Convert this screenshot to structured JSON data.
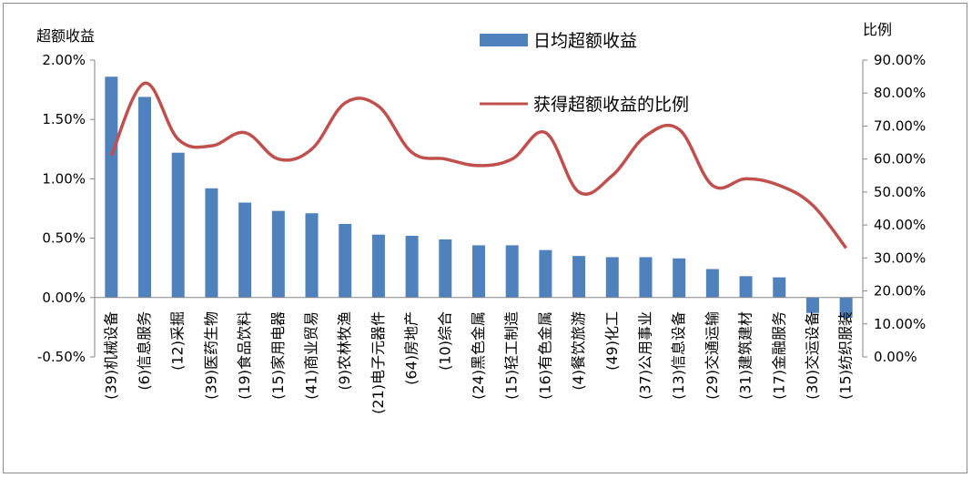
{
  "chart_data": {
    "type": "bar+line",
    "left_axis_title": "超额收益",
    "right_axis_title": "比例",
    "left_ticks": [
      "2.00%",
      "1.50%",
      "1.00%",
      "0.50%",
      "0.00%",
      "-0.50%"
    ],
    "right_ticks": [
      "90.00%",
      "80.00%",
      "70.00%",
      "60.00%",
      "50.00%",
      "40.00%",
      "30.00%",
      "20.00%",
      "10.00%",
      "0.00%"
    ],
    "ylim_left": [
      -0.5,
      2.0
    ],
    "ylim_right": [
      0,
      90
    ],
    "categories": [
      "(39)机械设备",
      "(6)信息服务",
      "(12)采掘",
      "(39)医药生物",
      "(19)食品饮料",
      "(15)家用电器",
      "(41)商业贸易",
      "(9)农林牧渔",
      "(21)电子元器件",
      "(64)房地产",
      "(10)综合",
      "(24)黑色金属",
      "(15)轻工制造",
      "(16)有色金属",
      "(4)餐饮旅游",
      "(49)化工",
      "(37)公用事业",
      "(13)信息设备",
      "(29)交通运输",
      "(31)建筑建材",
      "(17)金融服务",
      "(30)交运设备",
      "(15)纺织服装"
    ],
    "series": [
      {
        "name": "日均超额收益",
        "type": "bar",
        "axis": "left",
        "color": "#4f81bd",
        "values": [
          1.86,
          1.69,
          1.22,
          0.92,
          0.8,
          0.73,
          0.71,
          0.62,
          0.53,
          0.52,
          0.49,
          0.44,
          0.44,
          0.4,
          0.35,
          0.34,
          0.34,
          0.33,
          0.24,
          0.18,
          0.17,
          -0.13,
          -0.17
        ]
      },
      {
        "name": "获得超额收益的比例",
        "type": "line",
        "axis": "right",
        "color": "#c0504d",
        "values": [
          61,
          83,
          66,
          64,
          68,
          60,
          63,
          77,
          76,
          62,
          60,
          58,
          60,
          68,
          50,
          55,
          67,
          69,
          52,
          54,
          52,
          46,
          33
        ]
      }
    ],
    "legend_position": "top-center"
  }
}
